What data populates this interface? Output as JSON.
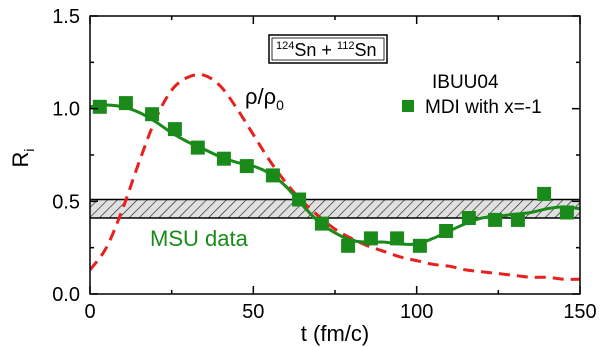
{
  "chart_data": {
    "type": "line",
    "xlabel": "t (fm/c)",
    "ylabel": {
      "main": "R",
      "sub": "i"
    },
    "xlim": [
      0,
      150
    ],
    "ylim": [
      0.0,
      1.5
    ],
    "xticks": [
      0,
      50,
      100,
      150
    ],
    "xtick_labels": [
      "0",
      "50",
      "100",
      "150"
    ],
    "yticks": [
      0.0,
      0.5,
      1.0,
      1.5
    ],
    "ytick_labels": [
      "0.0",
      "0.5",
      "1.0",
      "1.5"
    ],
    "reaction_label": {
      "mass_a": "124",
      "el_a": "Sn",
      "plus": " + ",
      "mass_b": "112",
      "el_b": "Sn"
    },
    "density_label": {
      "rho": "ρ",
      "slash": "/",
      "rho0": "ρ",
      "sub": "0"
    },
    "legend": {
      "title": "IBUU04",
      "entry": "MDI with x=-1"
    },
    "band": {
      "label": "MSU data",
      "y_low": 0.41,
      "y_high": 0.51
    },
    "colors": {
      "green": "#1a8a1a",
      "red": "#e8201e",
      "band_fill": "#e0e0e0"
    },
    "series": [
      {
        "style": "markers",
        "x": [
          3,
          11,
          19,
          26,
          33,
          41,
          48,
          56,
          64,
          71,
          79,
          86,
          94,
          101,
          109,
          116,
          124,
          131,
          139,
          146
        ],
        "y": [
          1.01,
          1.03,
          0.97,
          0.89,
          0.79,
          0.73,
          0.69,
          0.64,
          0.51,
          0.38,
          0.26,
          0.3,
          0.3,
          0.26,
          0.34,
          0.41,
          0.4,
          0.4,
          0.54,
          0.44
        ]
      },
      {
        "style": "solid",
        "x": [
          0,
          5,
          10,
          15,
          20,
          25,
          30,
          35,
          40,
          45,
          50,
          55,
          60,
          65,
          70,
          75,
          80,
          85,
          90,
          95,
          100,
          105,
          110,
          115,
          120,
          125,
          130,
          135,
          140,
          145,
          150
        ],
        "y": [
          1.01,
          1.02,
          1.01,
          0.98,
          0.93,
          0.87,
          0.82,
          0.78,
          0.74,
          0.71,
          0.69,
          0.65,
          0.58,
          0.48,
          0.39,
          0.33,
          0.29,
          0.28,
          0.28,
          0.27,
          0.27,
          0.3,
          0.34,
          0.38,
          0.41,
          0.42,
          0.43,
          0.44,
          0.46,
          0.47,
          0.46
        ]
      },
      {
        "style": "dashed",
        "x": [
          0,
          5,
          10,
          15,
          20,
          25,
          30,
          35,
          40,
          45,
          50,
          55,
          60,
          65,
          70,
          75,
          80,
          85,
          90,
          95,
          100,
          105,
          110,
          115,
          120,
          125,
          130,
          135,
          140,
          145,
          150
        ],
        "y": [
          0.13,
          0.25,
          0.46,
          0.71,
          0.94,
          1.1,
          1.17,
          1.18,
          1.12,
          1.0,
          0.86,
          0.72,
          0.6,
          0.5,
          0.42,
          0.35,
          0.3,
          0.26,
          0.23,
          0.2,
          0.18,
          0.16,
          0.15,
          0.13,
          0.12,
          0.11,
          0.1,
          0.09,
          0.09,
          0.08,
          0.08
        ]
      }
    ]
  }
}
